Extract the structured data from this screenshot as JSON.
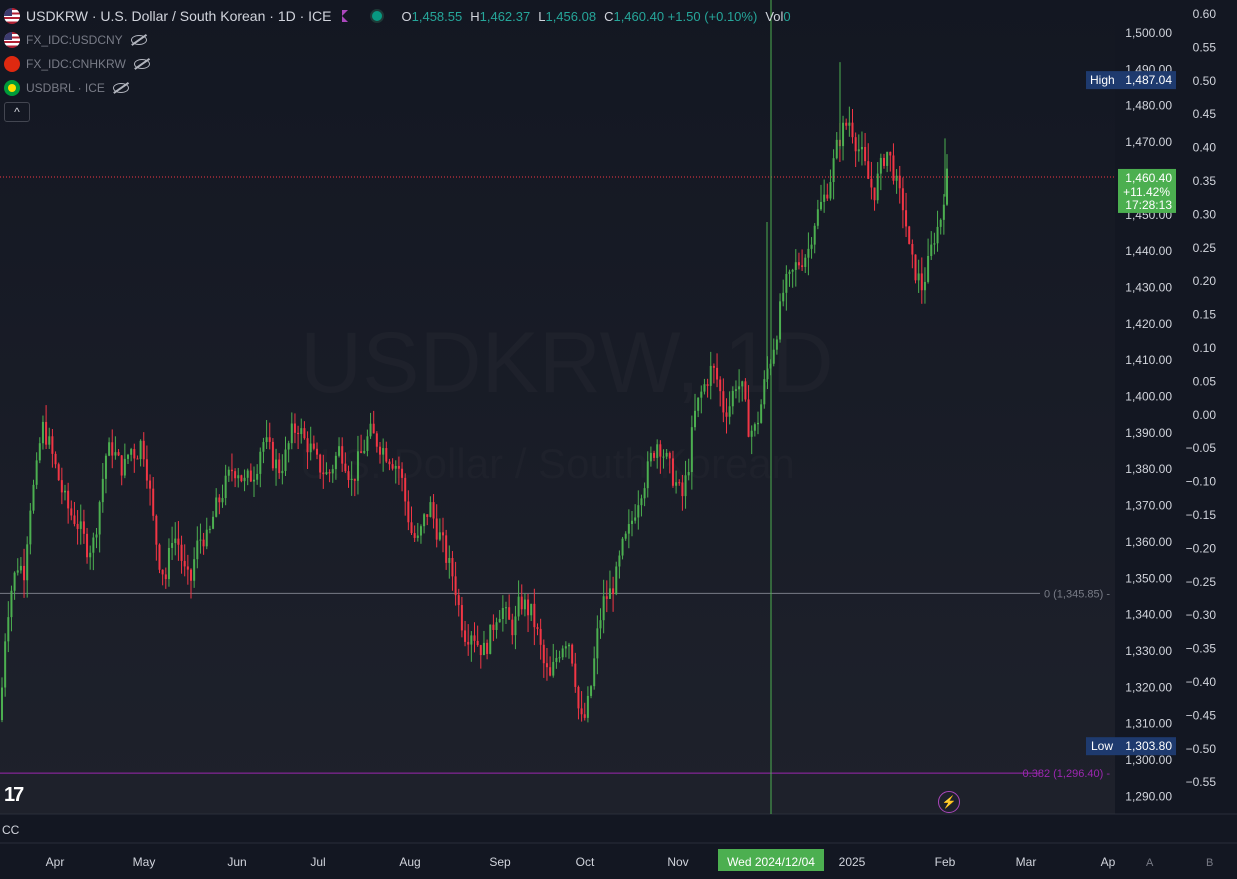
{
  "legend": {
    "title": "USDKRW · U.S. Dollar / South Korean · 1D · ICE",
    "o_label": "O",
    "o_value": "1,458.55",
    "h_label": "H",
    "h_value": "1,462.37",
    "l_label": "L",
    "l_value": "1,456.08",
    "c_label": "C",
    "c_value": "1,460.40 +1.50 (+0.10%)",
    "vol_label": "Vol",
    "vol_value": "0",
    "sub_symbols": [
      "FX_IDC:USDCNY",
      "FX_IDC:CNHKRW",
      "USDBRL · ICE"
    ],
    "collapse_glyph": "^"
  },
  "watermark": {
    "symbol": "USDKRW, 1D",
    "description": "U.S. Dollar / South Korean"
  },
  "chart_data": {
    "type": "candlestick",
    "y_range": [
      1286,
      1512
    ],
    "left_axis_ticks": [
      "1,500.00",
      "1,490.00",
      "1,480.00",
      "1,470.00",
      "1,460.00",
      "1,450.00",
      "1,440.00",
      "1,430.00",
      "1,420.00",
      "1,410.00",
      "1,400.00",
      "1,390.00",
      "1,380.00",
      "1,370.00",
      "1,360.00",
      "1,350.00",
      "1,340.00",
      "1,330.00",
      "1,320.00",
      "1,310.00",
      "1,300.00",
      "1,290.00"
    ],
    "right_axis_ticks": [
      "0.60",
      "0.55",
      "0.50",
      "0.45",
      "0.40",
      "0.35",
      "0.30",
      "0.25",
      "0.20",
      "0.15",
      "0.10",
      "0.05",
      "0.00",
      "−0.05",
      "−0.10",
      "−0.15",
      "−0.20",
      "−0.25",
      "−0.30",
      "−0.35",
      "−0.40",
      "−0.45",
      "−0.50",
      "−0.55"
    ],
    "x_ticks": [
      "Apr",
      "May",
      "Jun",
      "Jul",
      "Aug",
      "Sep",
      "Oct",
      "Nov",
      "2025",
      "Feb",
      "Mar",
      "Ap"
    ],
    "crosshair_date": "Wed 2024/12/04",
    "high_label": "High",
    "high_value": "1,487.04",
    "low_label": "Low",
    "low_value": "1,303.80",
    "last_price": "1,460.40",
    "last_change": "+11.42%",
    "countdown": "17:28:13",
    "fib_levels": [
      {
        "label": "0 (1,345.85)",
        "value": 1345.85,
        "color": "#787b86"
      },
      {
        "label": "0.382 (1,296.40)",
        "value": 1296.4,
        "color": "#9c27b0"
      }
    ],
    "anchors": [
      [
        0,
        1311
      ],
      [
        6,
        1338
      ],
      [
        12,
        1348
      ],
      [
        18,
        1354
      ],
      [
        24,
        1352
      ],
      [
        30,
        1370
      ],
      [
        36,
        1378
      ],
      [
        42,
        1392
      ],
      [
        48,
        1388
      ],
      [
        52,
        1384
      ],
      [
        58,
        1378
      ],
      [
        64,
        1372
      ],
      [
        70,
        1368
      ],
      [
        76,
        1366
      ],
      [
        82,
        1362
      ],
      [
        88,
        1358
      ],
      [
        94,
        1360
      ],
      [
        100,
        1372
      ],
      [
        106,
        1384
      ],
      [
        112,
        1386
      ],
      [
        118,
        1382
      ],
      [
        124,
        1380
      ],
      [
        130,
        1386
      ],
      [
        136,
        1384
      ],
      [
        142,
        1388
      ],
      [
        148,
        1378
      ],
      [
        154,
        1364
      ],
      [
        160,
        1354
      ],
      [
        166,
        1350
      ],
      [
        172,
        1362
      ],
      [
        178,
        1360
      ],
      [
        184,
        1352
      ],
      [
        190,
        1348
      ],
      [
        196,
        1358
      ],
      [
        202,
        1362
      ],
      [
        208,
        1360
      ],
      [
        214,
        1368
      ],
      [
        220,
        1372
      ],
      [
        226,
        1376
      ],
      [
        232,
        1380
      ],
      [
        238,
        1380
      ],
      [
        244,
        1376
      ],
      [
        250,
        1378
      ],
      [
        256,
        1380
      ],
      [
        262,
        1388
      ],
      [
        268,
        1386
      ],
      [
        274,
        1382
      ],
      [
        280,
        1380
      ],
      [
        286,
        1384
      ],
      [
        292,
        1390
      ],
      [
        298,
        1392
      ],
      [
        304,
        1388
      ],
      [
        310,
        1386
      ],
      [
        316,
        1382
      ],
      [
        322,
        1380
      ],
      [
        328,
        1378
      ],
      [
        334,
        1382
      ],
      [
        340,
        1386
      ],
      [
        346,
        1382
      ],
      [
        352,
        1376
      ],
      [
        358,
        1382
      ],
      [
        364,
        1386
      ],
      [
        370,
        1390
      ],
      [
        376,
        1388
      ],
      [
        382,
        1386
      ],
      [
        388,
        1384
      ],
      [
        394,
        1382
      ],
      [
        400,
        1380
      ],
      [
        406,
        1370
      ],
      [
        412,
        1362
      ],
      [
        418,
        1360
      ],
      [
        424,
        1366
      ],
      [
        430,
        1370
      ],
      [
        436,
        1364
      ],
      [
        442,
        1360
      ],
      [
        448,
        1354
      ],
      [
        454,
        1350
      ],
      [
        460,
        1340
      ],
      [
        466,
        1334
      ],
      [
        472,
        1336
      ],
      [
        478,
        1332
      ],
      [
        484,
        1330
      ],
      [
        490,
        1334
      ],
      [
        496,
        1340
      ],
      [
        502,
        1342
      ],
      [
        508,
        1338
      ],
      [
        514,
        1336
      ],
      [
        520,
        1344
      ],
      [
        526,
        1342
      ],
      [
        532,
        1340
      ],
      [
        538,
        1334
      ],
      [
        544,
        1326
      ],
      [
        550,
        1322
      ],
      [
        556,
        1328
      ],
      [
        562,
        1332
      ],
      [
        568,
        1334
      ],
      [
        574,
        1326
      ],
      [
        580,
        1310
      ],
      [
        586,
        1312
      ],
      [
        592,
        1322
      ],
      [
        598,
        1336
      ],
      [
        604,
        1344
      ],
      [
        610,
        1346
      ],
      [
        616,
        1350
      ],
      [
        622,
        1358
      ],
      [
        628,
        1362
      ],
      [
        634,
        1368
      ],
      [
        640,
        1374
      ],
      [
        646,
        1378
      ],
      [
        652,
        1384
      ],
      [
        658,
        1388
      ],
      [
        664,
        1384
      ],
      [
        670,
        1380
      ],
      [
        676,
        1376
      ],
      [
        682,
        1372
      ],
      [
        688,
        1380
      ],
      [
        694,
        1394
      ],
      [
        700,
        1400
      ],
      [
        706,
        1404
      ],
      [
        712,
        1408
      ],
      [
        718,
        1404
      ],
      [
        724,
        1396
      ],
      [
        730,
        1398
      ],
      [
        736,
        1404
      ],
      [
        742,
        1402
      ],
      [
        748,
        1392
      ],
      [
        754,
        1390
      ],
      [
        760,
        1396
      ],
      [
        766,
        1406
      ],
      [
        772,
        1412
      ],
      [
        778,
        1420
      ],
      [
        784,
        1430
      ],
      [
        790,
        1432
      ],
      [
        796,
        1436
      ],
      [
        802,
        1438
      ],
      [
        808,
        1440
      ],
      [
        814,
        1448
      ],
      [
        820,
        1452
      ],
      [
        826,
        1456
      ],
      [
        832,
        1462
      ],
      [
        838,
        1470
      ],
      [
        844,
        1474
      ],
      [
        850,
        1476
      ],
      [
        856,
        1470
      ],
      [
        862,
        1466
      ],
      [
        868,
        1460
      ],
      [
        874,
        1456
      ],
      [
        880,
        1462
      ],
      [
        886,
        1468
      ],
      [
        892,
        1464
      ],
      [
        898,
        1456
      ],
      [
        904,
        1452
      ],
      [
        910,
        1438
      ],
      [
        916,
        1434
      ],
      [
        922,
        1430
      ],
      [
        928,
        1436
      ],
      [
        934,
        1444
      ],
      [
        940,
        1448
      ],
      [
        946,
        1460
      ],
      [
        950,
        1461
      ]
    ]
  }
}
